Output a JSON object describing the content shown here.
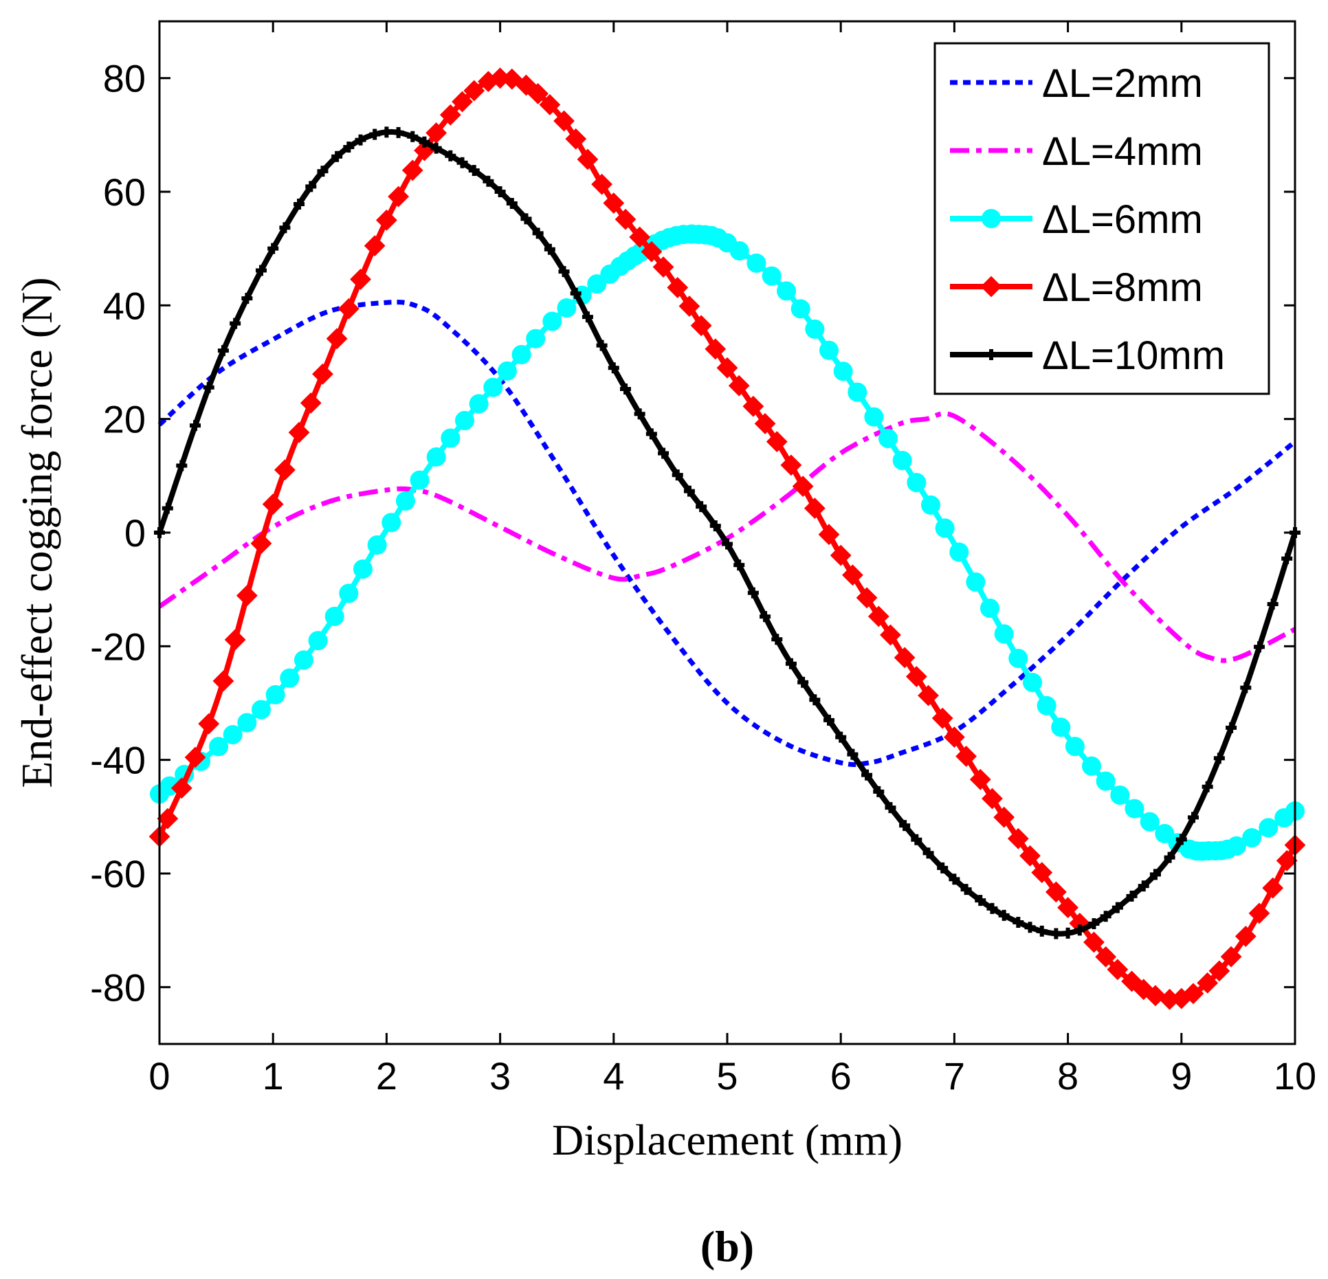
{
  "chart_data": {
    "type": "line",
    "xlabel": "Displacement (mm)",
    "ylabel": "End-effect cogging force (N)",
    "panel_label": "(b)",
    "xlim": [
      0,
      10
    ],
    "ylim": [
      -90,
      90
    ],
    "xticks": [
      0,
      1,
      2,
      3,
      4,
      5,
      6,
      7,
      8,
      9,
      10
    ],
    "yticks": [
      -80,
      -60,
      -40,
      -20,
      0,
      20,
      40,
      60,
      80
    ],
    "legend_position": "top-right",
    "series": [
      {
        "name": "ΔL=2mm",
        "color": "#0000ff",
        "style": "dotted",
        "marker": "none",
        "x": [
          0,
          0.5,
          1,
          1.5,
          2,
          2.25,
          2.5,
          3,
          3.5,
          4,
          4.5,
          5,
          5.5,
          6,
          6.25,
          6.5,
          7,
          7.5,
          8,
          8.5,
          9,
          9.5,
          10
        ],
        "y": [
          19,
          28,
          34,
          39,
          40.5,
          40,
          37,
          27,
          12,
          -4,
          -18,
          -30,
          -37,
          -40.5,
          -40.5,
          -39,
          -35,
          -27,
          -18,
          -8,
          1,
          8,
          16
        ]
      },
      {
        "name": "ΔL=4mm",
        "color": "#ff00ff",
        "style": "dashdot",
        "marker": "none",
        "x": [
          0,
          0.5,
          1,
          1.5,
          2,
          2.25,
          2.5,
          3,
          3.5,
          4,
          4.25,
          4.5,
          5,
          5.5,
          6,
          6.5,
          6.75,
          7,
          7.5,
          8,
          8.5,
          9,
          9.25,
          9.5,
          10
        ],
        "y": [
          -13,
          -6,
          1,
          5.5,
          7.5,
          7.5,
          6,
          1,
          -4,
          -8,
          -7.5,
          -6,
          -1,
          6,
          14,
          19,
          20,
          20.5,
          13,
          3,
          -9,
          -19,
          -22,
          -22,
          -17
        ]
      },
      {
        "name": "ΔL=6mm",
        "color": "#00ffff",
        "style": "solid",
        "marker": "circle",
        "x": [
          0,
          0.5,
          1,
          1.5,
          2,
          2.5,
          3,
          3.5,
          4,
          4.25,
          4.5,
          4.75,
          5,
          5.5,
          6,
          6.5,
          7,
          7.5,
          8,
          8.5,
          9,
          9.25,
          9.5,
          10
        ],
        "y": [
          -46,
          -38,
          -29,
          -16,
          0.5,
          15,
          27,
          38,
          46,
          49.5,
          52,
          52.5,
          51,
          43,
          29,
          14,
          -2,
          -20,
          -36,
          -47,
          -55,
          -56,
          -55,
          -49
        ]
      },
      {
        "name": "ΔL=8mm",
        "color": "#ff0000",
        "style": "solid",
        "marker": "diamond",
        "x": [
          0,
          0.5,
          1,
          1.5,
          2,
          2.5,
          3,
          3.5,
          4,
          4.5,
          5,
          5.5,
          6,
          6.5,
          7,
          7.5,
          8,
          8.5,
          9,
          9.5,
          10
        ],
        "y": [
          -53.5,
          -30,
          5,
          31,
          55,
          72,
          80,
          74,
          58,
          45,
          29,
          14,
          -4,
          -20,
          -36,
          -52,
          -66,
          -78,
          -82,
          -73,
          -55
        ]
      },
      {
        "name": "ΔL=10mm",
        "color": "#000000",
        "style": "solid",
        "marker": "plus",
        "x": [
          0,
          0.5,
          1,
          1.5,
          2,
          2.5,
          3,
          3.5,
          4,
          4.5,
          5,
          5.5,
          6,
          6.5,
          7,
          7.5,
          8,
          8.5,
          9,
          9.5,
          10
        ],
        "y": [
          0,
          29,
          50,
          65,
          70.5,
          67,
          60,
          48,
          29,
          12,
          -2,
          -21,
          -36,
          -50,
          -61,
          -68,
          -70.5,
          -65,
          -54,
          -31,
          0
        ]
      }
    ]
  }
}
